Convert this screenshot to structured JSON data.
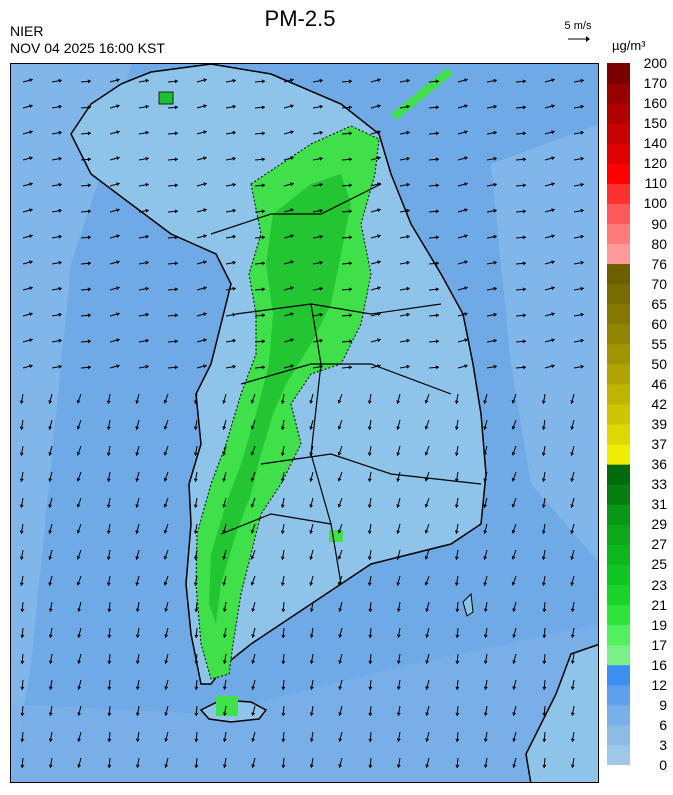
{
  "header": {
    "title": "PM-2.5",
    "agency": "NIER",
    "timestamp": "NOV 04 2025 16:00 KST",
    "wind_reference": "5 m/s",
    "unit_label": "µg/m³"
  },
  "legend": {
    "levels": [
      "0",
      "3",
      "6",
      "9",
      "12",
      "16",
      "17",
      "19",
      "21",
      "23",
      "25",
      "27",
      "29",
      "31",
      "33",
      "36",
      "37",
      "39",
      "42",
      "46",
      "50",
      "55",
      "60",
      "65",
      "70",
      "76",
      "80",
      "90",
      "100",
      "110",
      "120",
      "140",
      "150",
      "160",
      "170",
      "200"
    ],
    "colors": [
      "#9dc8e6",
      "#8cbbe6",
      "#7ab0e8",
      "#5fa0ec",
      "#3a8ff0",
      "#7bf08a",
      "#52f060",
      "#2ee33c",
      "#18d42a",
      "#10c622",
      "#0cb81e",
      "#0aa81a",
      "#089716",
      "#067f12",
      "#046a0e",
      "#eeee00",
      "#ddd800",
      "#cec400",
      "#bfb400",
      "#b0a400",
      "#a09400",
      "#928600",
      "#847800",
      "#766c00",
      "#6a6000",
      "#ff9a9a",
      "#ff7a7a",
      "#ff5a5a",
      "#ff3030",
      "#ff0000",
      "#e00000",
      "#c80000",
      "#b00000",
      "#980000",
      "#7a0000"
    ]
  },
  "map_overlay": {
    "land_color": "#8ec4ea",
    "sea_color": "#6fa9e6",
    "high_pm_color": "#3fe04a",
    "core_pm_color": "#1fc02e",
    "outline_color": "#000000"
  }
}
